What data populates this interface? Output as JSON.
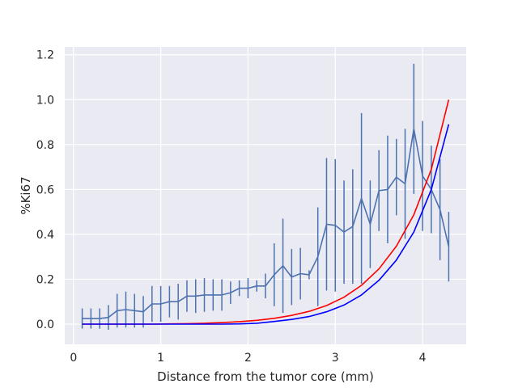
{
  "chart_data": {
    "type": "line",
    "title": "",
    "xlabel": "Distance from the tumor core (mm)",
    "ylabel": "%Ki67",
    "xlim": [
      -0.1,
      4.5
    ],
    "ylim": [
      -0.09,
      1.235
    ],
    "xticks": [
      0,
      1,
      2,
      3,
      4
    ],
    "yticks": [
      0.0,
      0.2,
      0.4,
      0.6,
      0.8,
      1.0,
      1.2
    ],
    "xtick_labels": [
      "0",
      "1",
      "2",
      "3",
      "4"
    ],
    "ytick_labels": [
      "0.0",
      "0.2",
      "0.4",
      "0.6",
      "0.8",
      "1.0",
      "1.2"
    ],
    "grid": true,
    "legend": "none",
    "colors": {
      "background": "#eaeaf2",
      "grid": "#ffffff",
      "measured": "#4c72b0",
      "model_red": "#ff0000",
      "model_blue": "#0000ff"
    },
    "series": [
      {
        "kind": "errorbar",
        "color": "#4c72b0",
        "x": [
          0.1,
          0.2,
          0.3,
          0.4,
          0.5,
          0.6,
          0.7,
          0.8,
          0.9,
          1.0,
          1.1,
          1.2,
          1.3,
          1.4,
          1.5,
          1.6,
          1.7,
          1.8,
          1.9,
          2.0,
          2.1,
          2.2,
          2.3,
          2.4,
          2.5,
          2.6,
          2.7,
          2.8,
          2.9,
          3.0,
          3.1,
          3.2,
          3.3,
          3.4,
          3.5,
          3.6,
          3.7,
          3.8,
          3.9,
          4.0,
          4.1,
          4.2,
          4.3
        ],
        "y": [
          0.025,
          0.025,
          0.025,
          0.03,
          0.06,
          0.065,
          0.06,
          0.055,
          0.09,
          0.09,
          0.1,
          0.1,
          0.125,
          0.125,
          0.13,
          0.13,
          0.13,
          0.14,
          0.16,
          0.16,
          0.17,
          0.17,
          0.22,
          0.26,
          0.21,
          0.225,
          0.22,
          0.3,
          0.445,
          0.44,
          0.41,
          0.435,
          0.56,
          0.445,
          0.595,
          0.6,
          0.655,
          0.625,
          0.87,
          0.66,
          0.6,
          0.51,
          0.345
        ],
        "err": [
          0.045,
          0.045,
          0.045,
          0.055,
          0.075,
          0.08,
          0.075,
          0.07,
          0.08,
          0.08,
          0.07,
          0.08,
          0.07,
          0.075,
          0.075,
          0.07,
          0.07,
          0.05,
          0.035,
          0.045,
          0.025,
          0.055,
          0.14,
          0.21,
          0.125,
          0.115,
          0.02,
          0.22,
          0.295,
          0.295,
          0.23,
          0.255,
          0.38,
          0.195,
          0.18,
          0.24,
          0.17,
          0.245,
          0.29,
          0.245,
          0.195,
          0.225,
          0.155
        ]
      },
      {
        "kind": "curve",
        "color": "#ff0000",
        "x": [
          0.1,
          0.3,
          0.5,
          0.7,
          0.9,
          1.1,
          1.3,
          1.5,
          1.7,
          1.9,
          2.1,
          2.3,
          2.5,
          2.7,
          2.9,
          3.1,
          3.3,
          3.5,
          3.7,
          3.9,
          4.1,
          4.3
        ],
        "y": [
          0.0,
          0.0,
          0.0,
          0.0,
          0.0,
          0.001,
          0.002,
          0.004,
          0.007,
          0.011,
          0.017,
          0.026,
          0.039,
          0.057,
          0.083,
          0.12,
          0.173,
          0.246,
          0.347,
          0.487,
          0.69,
          1.0
        ]
      },
      {
        "kind": "curve",
        "color": "#0000ff",
        "x": [
          0.1,
          0.3,
          0.5,
          0.7,
          0.9,
          1.1,
          1.3,
          1.5,
          1.7,
          1.9,
          2.1,
          2.3,
          2.5,
          2.7,
          2.9,
          3.1,
          3.3,
          3.5,
          3.7,
          3.9,
          4.1,
          4.3
        ],
        "y": [
          0.0,
          0.0,
          0.0,
          0.0,
          0.0,
          0.0,
          0.0,
          0.0,
          0.0,
          0.001,
          0.004,
          0.012,
          0.021,
          0.034,
          0.055,
          0.085,
          0.13,
          0.195,
          0.285,
          0.41,
          0.6,
          0.89
        ]
      }
    ]
  }
}
